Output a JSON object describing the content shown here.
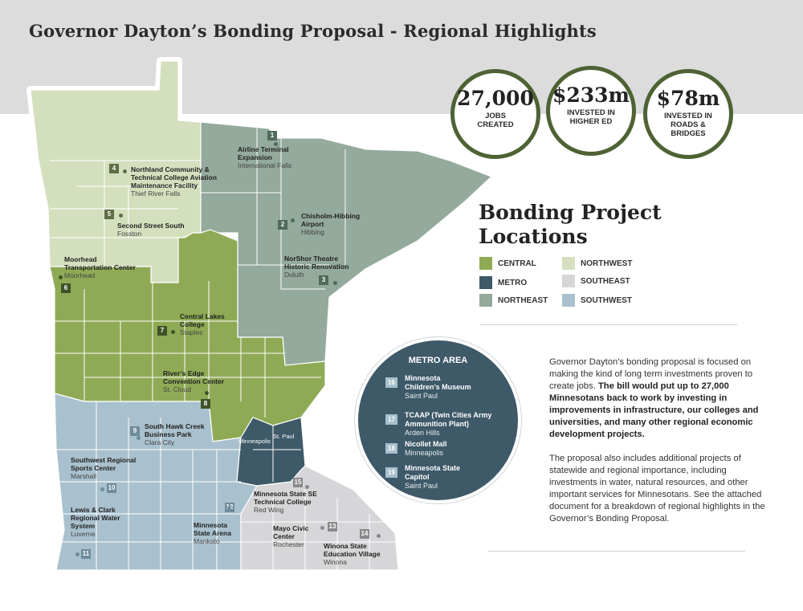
{
  "title": "Governor Dayton’s Bonding Proposal - Regional Highlights",
  "stats": [
    {
      "value": "27,000",
      "label": "JOBS\nCREATED"
    },
    {
      "value": "$233m",
      "label": "INVESTED IN\nHIGHER ED"
    },
    {
      "value": "$78m",
      "label": "INVESTED IN\nROADS & BRIDGES"
    }
  ],
  "legend": {
    "title": "Bonding Project Locations",
    "items": [
      {
        "label": "CENTRAL",
        "color": "#8faa55"
      },
      {
        "label": "METRO",
        "color": "#3e5968"
      },
      {
        "label": "NORTHEAST",
        "color": "#93aa9c"
      },
      {
        "label": "NORTHWEST",
        "color": "#d4dfbe"
      },
      {
        "label": "SOUTHEAST",
        "color": "#d6d6d8"
      },
      {
        "label": "SOUTHWEST",
        "color": "#a9c1ce"
      }
    ]
  },
  "metro": {
    "title": "METRO AREA",
    "items": [
      {
        "num": "16",
        "name": "Minnesota\nChildren’s Museum",
        "city": "Saint Paul"
      },
      {
        "num": "17",
        "name": "TCAAP (Twin Cities Army\nAmmunition Plant)",
        "city": "Arden Hills"
      },
      {
        "num": "18",
        "name": "Nicollet Mall",
        "city": "Minneapolis"
      },
      {
        "num": "19",
        "name": "Minnesota State\nCapitol",
        "city": "Saint Paul"
      }
    ]
  },
  "paragraph1_plain": "Governor Dayton’s bonding proposal is focused on making the kind of long term investments proven to create jobs.",
  "paragraph1_bold": "The bill would put up to 27,000 Minnesotans back to work by investing in improvements in infrastructure, our colleges and universities, and many other regional economic development projects.",
  "paragraph2": "The proposal also includes additional projects of statewide and regional importance, including investments in water, natural resources, and other important services for Minnesotans. See the attached document for a breakdown of regional highlights in the Governor’s Bonding Proposal.",
  "map_cities": [
    "Minneapolis",
    "St. Paul"
  ],
  "projects": [
    {
      "num": "1",
      "name": "Airline Terminal\nExpansion",
      "city": "International Falls",
      "region": "NORTHEAST"
    },
    {
      "num": "2",
      "name": "Chisholm-Hibbing\nAirport",
      "city": "Hibbing",
      "region": "NORTHEAST"
    },
    {
      "num": "3",
      "name": "NorShor Theatre\nHistoric Renovation",
      "city": "Duluth",
      "region": "NORTHEAST"
    },
    {
      "num": "4",
      "name": "Northland Community &\nTechnical College Aviation\nMaintenance Facility",
      "city": "Thief River Falls",
      "region": "NORTHWEST"
    },
    {
      "num": "5",
      "name": "Second Street South",
      "city": "Fosston",
      "region": "NORTHWEST"
    },
    {
      "num": "6",
      "name": "Moorhead\nTransportation Center",
      "city": "Moorhead",
      "region": "CENTRAL"
    },
    {
      "num": "7",
      "name": "Central Lakes\nCollege",
      "city": "Staples",
      "region": "CENTRAL"
    },
    {
      "num": "8",
      "name": "River’s Edge\nConvention Center",
      "city": "St. Cloud",
      "region": "CENTRAL"
    },
    {
      "num": "9",
      "name": "South Hawk Creek\nBusiness Park",
      "city": "Clara City",
      "region": "SOUTHWEST"
    },
    {
      "num": "10",
      "name": "Southwest Regional\nSports Center",
      "city": "Marshall",
      "region": "SOUTHWEST"
    },
    {
      "num": "11",
      "name": "Lewis & Clark\nRegional Water\nSystem",
      "city": "Luverne",
      "region": "SOUTHWEST"
    },
    {
      "num": "12",
      "name": "Minnesota\nState Arena",
      "city": "Mankato",
      "region": "SOUTHWEST"
    },
    {
      "num": "13",
      "name": "Mayo Civic\nCenter",
      "city": "Rochester",
      "region": "SOUTHEAST"
    },
    {
      "num": "14",
      "name": "Winona State\nEducation Village",
      "city": "Winona",
      "region": "SOUTHEAST"
    },
    {
      "num": "15",
      "name": "Minnesota State SE\nTechnical College",
      "city": "Red Wing",
      "region": "SOUTHEAST"
    }
  ]
}
